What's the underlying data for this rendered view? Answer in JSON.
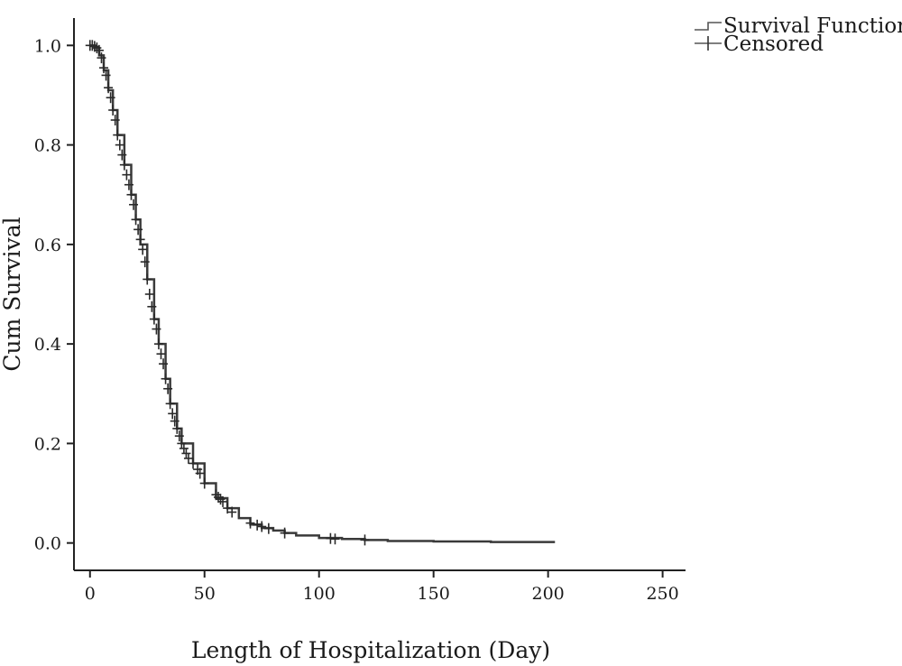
{
  "chart_data": {
    "type": "line",
    "xlabel": "Length of Hospitalization (Day)",
    "ylabel": "Cum Survival",
    "xlim": [
      -7,
      260
    ],
    "ylim": [
      -0.055,
      1.055
    ],
    "x_ticks": [
      0,
      50,
      100,
      150,
      200,
      250
    ],
    "x_tick_labels": [
      "0",
      "50",
      "100",
      "150",
      "200",
      "250"
    ],
    "y_ticks": [
      0.0,
      0.2,
      0.4,
      0.6,
      0.8,
      1.0
    ],
    "y_tick_labels": [
      "0.0",
      "0.2",
      "0.4",
      "0.6",
      "0.8",
      "1.0"
    ],
    "legend": {
      "position": "top-right",
      "entries": [
        {
          "label": "Survival Function",
          "marker": "step-line"
        },
        {
          "label": "Censored",
          "marker": "plus"
        }
      ]
    },
    "series": [
      {
        "name": "Survival Function",
        "x": [
          0,
          2,
          4,
          6,
          8,
          10,
          12,
          15,
          18,
          20,
          22,
          25,
          28,
          30,
          33,
          35,
          38,
          40,
          45,
          50,
          55,
          60,
          65,
          70,
          75,
          80,
          85,
          90,
          100,
          110,
          120,
          130,
          150,
          175,
          200,
          203
        ],
        "y": [
          1.0,
          0.995,
          0.98,
          0.95,
          0.91,
          0.87,
          0.82,
          0.76,
          0.7,
          0.65,
          0.6,
          0.53,
          0.45,
          0.4,
          0.33,
          0.28,
          0.23,
          0.2,
          0.16,
          0.12,
          0.09,
          0.07,
          0.05,
          0.037,
          0.03,
          0.025,
          0.02,
          0.015,
          0.01,
          0.008,
          0.006,
          0.004,
          0.003,
          0.002,
          0.002,
          0.002
        ]
      },
      {
        "name": "Censored",
        "x": [
          0,
          1,
          2,
          3,
          4,
          5,
          6,
          7,
          8,
          9,
          10,
          11,
          12,
          13,
          14,
          15,
          16,
          17,
          18,
          19,
          20,
          21,
          22,
          23,
          24,
          25,
          26,
          27,
          28,
          29,
          30,
          31,
          32,
          33,
          34,
          35,
          36,
          37,
          38,
          39,
          40,
          41,
          42,
          43,
          45,
          47,
          48,
          50,
          55,
          56,
          57,
          58,
          60,
          62,
          70,
          73,
          75,
          78,
          85,
          105,
          107,
          120
        ],
        "y": [
          1.0,
          1.0,
          0.998,
          0.995,
          0.99,
          0.975,
          0.955,
          0.94,
          0.915,
          0.895,
          0.87,
          0.85,
          0.82,
          0.8,
          0.78,
          0.76,
          0.74,
          0.72,
          0.7,
          0.68,
          0.65,
          0.63,
          0.61,
          0.59,
          0.565,
          0.53,
          0.5,
          0.475,
          0.45,
          0.43,
          0.4,
          0.38,
          0.36,
          0.33,
          0.31,
          0.28,
          0.26,
          0.245,
          0.23,
          0.215,
          0.2,
          0.19,
          0.18,
          0.17,
          0.16,
          0.148,
          0.14,
          0.12,
          0.097,
          0.092,
          0.088,
          0.083,
          0.07,
          0.062,
          0.04,
          0.036,
          0.033,
          0.029,
          0.02,
          0.009,
          0.008,
          0.006
        ]
      }
    ]
  }
}
